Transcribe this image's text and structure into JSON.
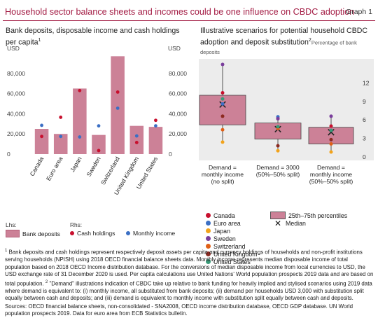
{
  "header": {
    "title": "Household sector balance sheets and incomes could be one influence on CBDC adoption",
    "graph_label": "Graph 1"
  },
  "colors": {
    "title": "#a31c44",
    "bars": "#cc8197",
    "cash_holdings": "#c8102e",
    "monthly_income": "#3b6fc4",
    "panel_background": "#ececec"
  },
  "chart_data": [
    {
      "type": "bar",
      "title": "Bank deposits, disposable income and cash holdings per capita",
      "title_footnote": "1",
      "y_unit_left": "USD",
      "y_unit_right": "USD",
      "ylim": [
        0,
        100000
      ],
      "yticks": [
        0,
        20000,
        40000,
        60000,
        80000
      ],
      "ytick_labels": [
        "0",
        "20,000",
        "40,000",
        "60,000",
        "80,000"
      ],
      "categories": [
        "Canada",
        "Euro area",
        "Japan",
        "Sweden",
        "Switzerland",
        "United Kingdom",
        "United States"
      ],
      "series": [
        {
          "name": "Bank deposits",
          "kind": "bar",
          "values": [
            25000,
            20000,
            65000,
            19000,
            97000,
            28000,
            27000
          ]
        },
        {
          "name": "Cash holdings",
          "kind": "dot",
          "values": [
            17500,
            36500,
            63000,
            3500,
            61500,
            11500,
            33500
          ]
        },
        {
          "name": "Monthly income",
          "kind": "dot",
          "values": [
            28500,
            17500,
            17000,
            28000,
            45500,
            18000,
            28000
          ]
        }
      ],
      "legend": {
        "lhs_label": "Lhs:",
        "rhs_label": "Rhs:",
        "items": [
          "Bank deposits",
          "Cash holdings",
          "Monthly income"
        ]
      },
      "grid": false
    },
    {
      "type": "box",
      "title": "Illustrative scenarios for potential household CBDC adoption and deposit substitution",
      "title_footnote": "2",
      "ylabel": "Percentage of bank deposits",
      "ylim": [
        0,
        15
      ],
      "yticks": [
        0,
        3,
        6,
        9,
        12
      ],
      "categories": [
        [
          "Demand =",
          "monthly income",
          "(no split)"
        ],
        [
          "Demand = 3000",
          "(50%–50% split)"
        ],
        [
          "Demand =",
          "monthly income",
          "(50%–50% split)"
        ]
      ],
      "boxes": [
        {
          "q1": 5.2,
          "q3": 10.0,
          "median": 8.5
        },
        {
          "q1": 2.9,
          "q3": 5.5,
          "median": 4.5
        },
        {
          "q1": 2.1,
          "q3": 4.8,
          "median": 4.0
        }
      ],
      "series": [
        {
          "name": "Canada",
          "color": "#c8102e",
          "values": [
            10.4,
            6.2,
            5.0
          ]
        },
        {
          "name": "Euro area",
          "color": "#3b6fc4",
          "values": [
            8.6,
            6.5,
            4.3
          ]
        },
        {
          "name": "Japan",
          "color": "#f2a31b",
          "values": [
            2.4,
            1.0,
            0.8
          ]
        },
        {
          "name": "Sweden",
          "color": "#7a3d9c",
          "values": [
            15.0,
            6.2,
            6.6
          ]
        },
        {
          "name": "Switzerland",
          "color": "#e06017",
          "values": [
            4.4,
            4.6,
            2.1
          ]
        },
        {
          "name": "United Kingdom",
          "color": "#8c2a21",
          "values": [
            6.6,
            1.8,
            2.8
          ]
        },
        {
          "name": "United States",
          "color": "#3a9a78",
          "values": [
            9.4,
            4.9,
            4.3
          ]
        }
      ],
      "legend": {
        "box_label": "25th–75th percentiles",
        "median_label": "Median"
      },
      "grid": false
    }
  ],
  "footnotes": {
    "note1_mark": "1",
    "note1": " Bank deposits and cash holdings represent respectively deposit assets per capita and currency holdings of households and non-profit institutions serving households (NPISH) using 2018 OECD financial balance sheets data. Monthly income represents median disposable income of total population based on 2018 OECD Income distribution database. For the conversions of median disposable income from local currencies to USD, the USD exchange rate of 31 December 2020 is used. Per capita calculations use United Nations' World population prospects 2019 data and are based on total population. ",
    "note2_mark": "2",
    "note2": " \"Demand\" illustrations indication of CBDC take up relative to bank funding for heavily implied and stylised scenarios using 2019 data where demand is equivalent to: (i) monthly income, all substituted from bank deposits; (ii) demand per households USD 3,000 with substitution split equally between cash and deposits; and (iii) demand is equivalent to monthly income with substitution split equally between cash and deposits.",
    "sources": "Sources: OECD financial balance sheets, non-consolidated - SNA2008, OECD income distribution database, OECD GDP database. UN World population prospects 2019. Data for euro area from ECB Statistics bulletin."
  }
}
